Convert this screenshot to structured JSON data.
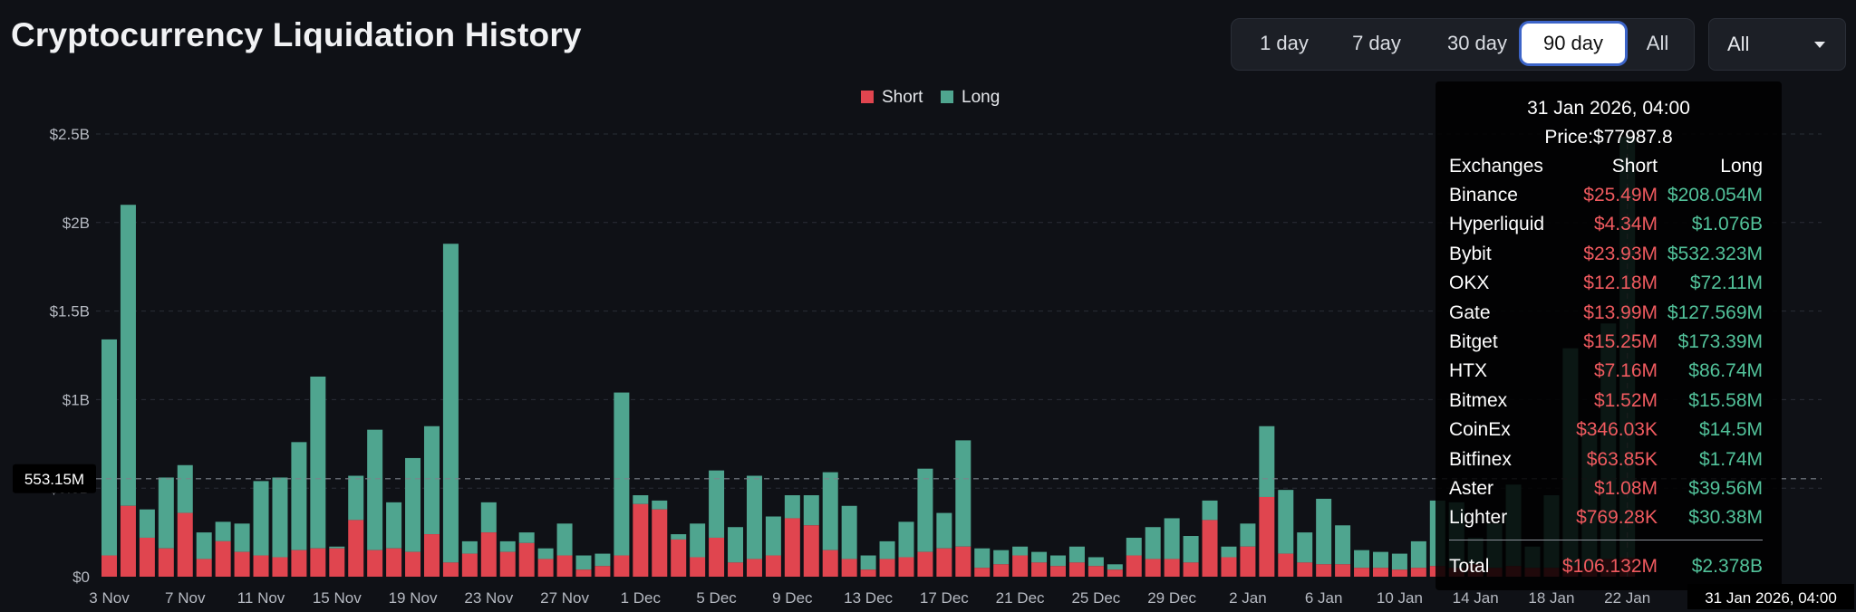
{
  "header": {
    "title": "Cryptocurrency Liquidation History"
  },
  "ranges": [
    {
      "label": "1 day",
      "active": false
    },
    {
      "label": "7 day",
      "active": false
    },
    {
      "label": "30 day",
      "active": false
    },
    {
      "label": "90 day",
      "active": true
    },
    {
      "label": "All",
      "active": false
    }
  ],
  "exchange_select": {
    "value": "All"
  },
  "tooltip": {
    "date": "31 Jan 2026, 04:00",
    "price": "Price:$77987.8",
    "headers": {
      "name": "Exchanges",
      "short": "Short",
      "long": "Long"
    },
    "rows": [
      {
        "name": "Binance",
        "short": "$25.49M",
        "long": "$208.054M"
      },
      {
        "name": "Hyperliquid",
        "short": "$4.34M",
        "long": "$1.076B"
      },
      {
        "name": "Bybit",
        "short": "$23.93M",
        "long": "$532.323M"
      },
      {
        "name": "OKX",
        "short": "$12.18M",
        "long": "$72.11M"
      },
      {
        "name": "Gate",
        "short": "$13.99M",
        "long": "$127.569M"
      },
      {
        "name": "Bitget",
        "short": "$15.25M",
        "long": "$173.39M"
      },
      {
        "name": "HTX",
        "short": "$7.16M",
        "long": "$86.74M"
      },
      {
        "name": "Bitmex",
        "short": "$1.52M",
        "long": "$15.58M"
      },
      {
        "name": "CoinEx",
        "short": "$346.03K",
        "long": "$14.5M"
      },
      {
        "name": "Bitfinex",
        "short": "$63.85K",
        "long": "$1.74M"
      },
      {
        "name": "Aster",
        "short": "$1.08M",
        "long": "$39.56M"
      },
      {
        "name": "Lighter",
        "short": "$769.28K",
        "long": "$30.38M"
      }
    ],
    "total": {
      "name": "Total",
      "short": "$106.132M",
      "long": "$2.378B"
    }
  },
  "colors": {
    "short": "#e0454f",
    "long": "#4fa58f",
    "background": "#0f1116"
  },
  "chart_data": {
    "type": "bar",
    "stacked": true,
    "legend": {
      "items": [
        "Short",
        "Long"
      ],
      "position": "top-center"
    },
    "ylim": [
      0,
      2.5
    ],
    "y_unit": "B",
    "y_ticks": [
      {
        "value": 0,
        "label": "$0"
      },
      {
        "value": 0.5,
        "label": "$0.5B"
      },
      {
        "value": 1,
        "label": "$1B"
      },
      {
        "value": 1.5,
        "label": "$1.5B"
      },
      {
        "value": 2,
        "label": "$2B"
      },
      {
        "value": 2.5,
        "label": "$2.5B"
      }
    ],
    "hover_line": {
      "value": 0.55315,
      "label": "553.15M"
    },
    "x_ticks": [
      {
        "index": 0,
        "label": "3 Nov"
      },
      {
        "index": 4,
        "label": "7 Nov"
      },
      {
        "index": 8,
        "label": "11 Nov"
      },
      {
        "index": 12,
        "label": "15 Nov"
      },
      {
        "index": 16,
        "label": "19 Nov"
      },
      {
        "index": 20,
        "label": "23 Nov"
      },
      {
        "index": 24,
        "label": "27 Nov"
      },
      {
        "index": 28,
        "label": "1 Dec"
      },
      {
        "index": 32,
        "label": "5 Dec"
      },
      {
        "index": 36,
        "label": "9 Dec"
      },
      {
        "index": 40,
        "label": "13 Dec"
      },
      {
        "index": 44,
        "label": "17 Dec"
      },
      {
        "index": 48,
        "label": "21 Dec"
      },
      {
        "index": 52,
        "label": "25 Dec"
      },
      {
        "index": 56,
        "label": "29 Dec"
      },
      {
        "index": 60,
        "label": "2 Jan"
      },
      {
        "index": 64,
        "label": "6 Jan"
      },
      {
        "index": 68,
        "label": "10 Jan"
      },
      {
        "index": 72,
        "label": "14 Jan"
      },
      {
        "index": 76,
        "label": "18 Jan"
      },
      {
        "index": 80,
        "label": "22 Jan"
      },
      {
        "index": 88,
        "label": "31 Jan 2026, 04:00"
      }
    ],
    "series": [
      {
        "name": "Short",
        "values": [
          0.12,
          0.4,
          0.22,
          0.16,
          0.36,
          0.1,
          0.2,
          0.14,
          0.12,
          0.11,
          0.15,
          0.16,
          0.16,
          0.32,
          0.15,
          0.16,
          0.14,
          0.24,
          0.08,
          0.13,
          0.25,
          0.14,
          0.19,
          0.1,
          0.12,
          0.04,
          0.06,
          0.12,
          0.41,
          0.38,
          0.21,
          0.11,
          0.22,
          0.08,
          0.1,
          0.12,
          0.33,
          0.29,
          0.15,
          0.1,
          0.04,
          0.1,
          0.11,
          0.14,
          0.16,
          0.17,
          0.05,
          0.07,
          0.12,
          0.08,
          0.06,
          0.08,
          0.06,
          0.04,
          0.12,
          0.1,
          0.1,
          0.08,
          0.32,
          0.11,
          0.17,
          0.45,
          0.13,
          0.08,
          0.07,
          0.07,
          0.05,
          0.05,
          0.04,
          0.05,
          0.06,
          0.05,
          0.07,
          0.05,
          0.06,
          0.05,
          0.05,
          0.06,
          0.05,
          0.1,
          0.106
        ]
      },
      {
        "name": "Long",
        "values": [
          1.22,
          1.7,
          0.16,
          0.4,
          0.27,
          0.15,
          0.11,
          0.16,
          0.42,
          0.45,
          0.61,
          0.97,
          0.01,
          0.25,
          0.68,
          0.26,
          0.53,
          0.61,
          1.8,
          0.07,
          0.17,
          0.06,
          0.06,
          0.06,
          0.18,
          0.08,
          0.07,
          0.92,
          0.05,
          0.05,
          0.03,
          0.19,
          0.38,
          0.2,
          0.47,
          0.22,
          0.13,
          0.17,
          0.44,
          0.3,
          0.08,
          0.1,
          0.2,
          0.47,
          0.2,
          0.6,
          0.11,
          0.08,
          0.05,
          0.06,
          0.06,
          0.09,
          0.05,
          0.03,
          0.1,
          0.18,
          0.23,
          0.15,
          0.11,
          0.06,
          0.13,
          0.4,
          0.36,
          0.17,
          0.37,
          0.22,
          0.1,
          0.09,
          0.09,
          0.15,
          0.37,
          0.37,
          0.15,
          0.25,
          0.46,
          0.12,
          0.41,
          1.23,
          0.8,
          1.33,
          2.378
        ]
      }
    ]
  }
}
